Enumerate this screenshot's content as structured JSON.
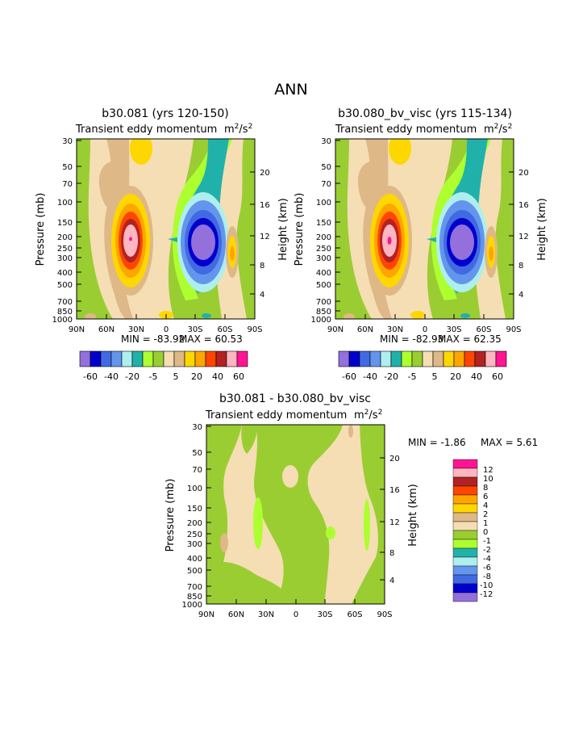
{
  "page_title": "ANN",
  "chart_data": [
    {
      "type": "contour",
      "title": "b30.081 (yrs 120-150)",
      "subtitle": "Transient eddy momentum",
      "units": "m²/s²",
      "units_base": "m",
      "units_exp1": "2",
      "units_mid": "/s",
      "units_exp2": "2",
      "xlabel": "",
      "ylabel": "Pressure (mb)",
      "ylabel_right": "Height (km)",
      "x_ticks": [
        "90N",
        "60N",
        "30N",
        "0",
        "30S",
        "60S",
        "90S"
      ],
      "y_ticks": [
        "30",
        "50",
        "70",
        "100",
        "150",
        "200",
        "250",
        "300",
        "400",
        "500",
        "700",
        "850",
        "1000"
      ],
      "y_ticks_right": [
        "20",
        "16",
        "12",
        "8",
        "4"
      ],
      "min_label": "MIN = -83.92",
      "max_label": "MAX = 60.53",
      "stats": {
        "min": -83.92,
        "max": 60.53
      },
      "colorbar_labels": [
        "-60",
        "-40",
        "-20",
        "-5",
        "5",
        "20",
        "40",
        "60"
      ]
    },
    {
      "type": "contour",
      "title": "b30.080_bv_visc (yrs 115-134)",
      "subtitle": "Transient eddy momentum",
      "units": "m²/s²",
      "units_base": "m",
      "units_exp1": "2",
      "units_mid": "/s",
      "units_exp2": "2",
      "xlabel": "",
      "ylabel": "Pressure (mb)",
      "ylabel_right": "Height (km)",
      "x_ticks": [
        "90N",
        "60N",
        "30N",
        "0",
        "30S",
        "60S",
        "90S"
      ],
      "y_ticks": [
        "30",
        "50",
        "70",
        "100",
        "150",
        "200",
        "250",
        "300",
        "400",
        "500",
        "700",
        "850",
        "1000"
      ],
      "y_ticks_right": [
        "20",
        "16",
        "12",
        "8",
        "4"
      ],
      "min_label": "MIN = -82.93",
      "max_label": "MAX = 62.35",
      "stats": {
        "min": -82.93,
        "max": 62.35
      },
      "colorbar_labels": [
        "-60",
        "-40",
        "-20",
        "-5",
        "5",
        "20",
        "40",
        "60"
      ]
    },
    {
      "type": "contour",
      "title": "b30.081 - b30.080_bv_visc",
      "subtitle": "Transient eddy momentum",
      "units": "m²/s²",
      "units_base": "m",
      "units_exp1": "2",
      "units_mid": "/s",
      "units_exp2": "2",
      "xlabel": "",
      "ylabel": "Pressure (mb)",
      "ylabel_right": "Height (km)",
      "x_ticks": [
        "90N",
        "60N",
        "30N",
        "0",
        "30S",
        "60S",
        "90S"
      ],
      "y_ticks": [
        "30",
        "50",
        "70",
        "100",
        "150",
        "200",
        "250",
        "300",
        "400",
        "500",
        "700",
        "850",
        "1000"
      ],
      "y_ticks_right": [
        "20",
        "16",
        "12",
        "8",
        "4"
      ],
      "min_label": "MIN = -1.86",
      "max_label": "MAX = 5.61",
      "stats": {
        "min": -1.86,
        "max": 5.61
      },
      "colorbar_labels": [
        "12",
        "10",
        "8",
        "6",
        "4",
        "2",
        "1",
        "0",
        "-1",
        "-2",
        "-4",
        "-6",
        "-8",
        "-10",
        "-12"
      ]
    }
  ],
  "colors": {
    "levels_main": [
      "#9370DB",
      "#0000CD",
      "#4169E1",
      "#6495ED",
      "#AFEEEE",
      "#20B2AA",
      "#ADFF2F",
      "#9ACD32",
      "#F5DEB3",
      "#DEB887",
      "#FFD700",
      "#FFA500",
      "#FF4500",
      "#B22222",
      "#FFB6C1",
      "#FF1493"
    ],
    "levels_diff": [
      "#FF1493",
      "#FFB6C1",
      "#B22222",
      "#FF4500",
      "#FFA500",
      "#FFD700",
      "#DEB887",
      "#F5DEB3",
      "#9ACD32",
      "#ADFF2F",
      "#20B2AA",
      "#AFEEEE",
      "#6495ED",
      "#4169E1",
      "#0000CD",
      "#9370DB"
    ]
  }
}
